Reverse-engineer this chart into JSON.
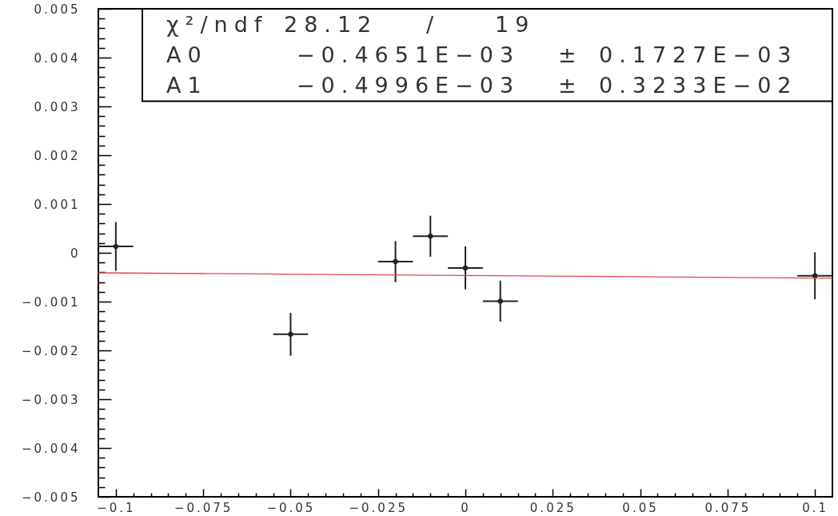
{
  "chart_data": {
    "type": "scatter",
    "marker": "circle",
    "xlim": [
      -0.105,
      0.105
    ],
    "ylim": [
      -0.005,
      0.005
    ],
    "xticks": [
      -0.1,
      {
        "value": -0.095,
        "label": null
      },
      {
        "value": -0.09,
        "label": null
      },
      {
        "value": -0.085,
        "label": null
      },
      {
        "value": -0.08,
        "label": null
      },
      -0.075,
      {
        "value": -0.07,
        "label": null
      },
      {
        "value": -0.065,
        "label": null
      },
      {
        "value": -0.06,
        "label": null
      },
      {
        "value": -0.055,
        "label": null
      },
      -0.05,
      {
        "value": -0.045,
        "label": null
      },
      {
        "value": -0.04,
        "label": null
      },
      {
        "value": -0.035,
        "label": null
      },
      {
        "value": -0.03,
        "label": null
      },
      -0.025,
      {
        "value": -0.02,
        "label": null
      },
      {
        "value": -0.015,
        "label": null
      },
      {
        "value": -0.01,
        "label": null
      },
      {
        "value": -0.005,
        "label": null
      },
      0,
      {
        "value": 0.005,
        "label": null
      },
      {
        "value": 0.01,
        "label": null
      },
      {
        "value": 0.015,
        "label": null
      },
      {
        "value": 0.02,
        "label": null
      },
      0.025,
      {
        "value": 0.03,
        "label": null
      },
      {
        "value": 0.035,
        "label": null
      },
      {
        "value": 0.04,
        "label": null
      },
      {
        "value": 0.045,
        "label": null
      },
      0.05,
      {
        "value": 0.055,
        "label": null
      },
      {
        "value": 0.06,
        "label": null
      },
      {
        "value": 0.065,
        "label": null
      },
      {
        "value": 0.07,
        "label": null
      },
      0.075,
      {
        "value": 0.08,
        "label": null
      },
      {
        "value": 0.085,
        "label": null
      },
      {
        "value": 0.09,
        "label": null
      },
      {
        "value": 0.095,
        "label": null
      },
      0.1
    ],
    "yticks": [
      -0.005,
      {
        "value": -0.0048,
        "label": null
      },
      {
        "value": -0.0046,
        "label": null
      },
      {
        "value": -0.0044,
        "label": null
      },
      {
        "value": -0.0042,
        "label": null
      },
      -0.004,
      {
        "value": -0.0038,
        "label": null
      },
      {
        "value": -0.0036,
        "label": null
      },
      {
        "value": -0.0034,
        "label": null
      },
      {
        "value": -0.0032,
        "label": null
      },
      -0.003,
      {
        "value": -0.0028,
        "label": null
      },
      {
        "value": -0.0026,
        "label": null
      },
      {
        "value": -0.0024,
        "label": null
      },
      {
        "value": -0.0022,
        "label": null
      },
      -0.002,
      {
        "value": -0.0018,
        "label": null
      },
      {
        "value": -0.0016,
        "label": null
      },
      {
        "value": -0.0014,
        "label": null
      },
      {
        "value": -0.0012,
        "label": null
      },
      -0.001,
      {
        "value": -0.0008,
        "label": null
      },
      {
        "value": -0.0006,
        "label": null
      },
      {
        "value": -0.0004,
        "label": null
      },
      {
        "value": -0.0002,
        "label": null
      },
      0,
      {
        "value": 0.0002,
        "label": null
      },
      {
        "value": 0.0004,
        "label": null
      },
      {
        "value": 0.0006,
        "label": null
      },
      {
        "value": 0.0008,
        "label": null
      },
      0.001,
      {
        "value": 0.0012,
        "label": null
      },
      {
        "value": 0.0014,
        "label": null
      },
      {
        "value": 0.0016,
        "label": null
      },
      {
        "value": 0.0018,
        "label": null
      },
      0.002,
      {
        "value": 0.0022,
        "label": null
      },
      {
        "value": 0.0024,
        "label": null
      },
      {
        "value": 0.0026,
        "label": null
      },
      {
        "value": 0.0028,
        "label": null
      },
      0.003,
      {
        "value": 0.0032,
        "label": null
      },
      {
        "value": 0.0034,
        "label": null
      },
      {
        "value": 0.0036,
        "label": null
      },
      {
        "value": 0.0038,
        "label": null
      },
      0.004,
      {
        "value": 0.0042,
        "label": null
      },
      {
        "value": 0.0044,
        "label": null
      },
      {
        "value": 0.0046,
        "label": null
      },
      {
        "value": 0.0048,
        "label": null
      },
      0.005
    ],
    "annotations": [
      "χ²/ndf 28.12 / 19",
      "A0 −0.4651E−03 ± 0.1727E−03",
      "A1 −0.4996E−03 ± 0.3233E−02"
    ],
    "series": [
      {
        "color": "#222222",
        "x": [
          -0.1,
          -0.05,
          -0.02,
          -0.01,
          0,
          0.01,
          0.1
        ],
        "values": [
          0.00013,
          -0.00167,
          -0.00018,
          0.00034,
          -0.00031,
          -0.00099,
          -0.00047
        ],
        "errors": [
          0.0005,
          0.00044,
          0.00042,
          0.00042,
          0.00044,
          0.00042,
          0.00048
        ],
        "xerrors": [
          0.005,
          0.005,
          0.005,
          0.005,
          0.005,
          0.005,
          0.005
        ]
      },
      {
        "type": "line",
        "marker": "none",
        "color": "#e8454f",
        "x": [
          -0.105,
          0.105
        ],
        "values": [
          -0.00041,
          -0.00052
        ]
      }
    ]
  }
}
